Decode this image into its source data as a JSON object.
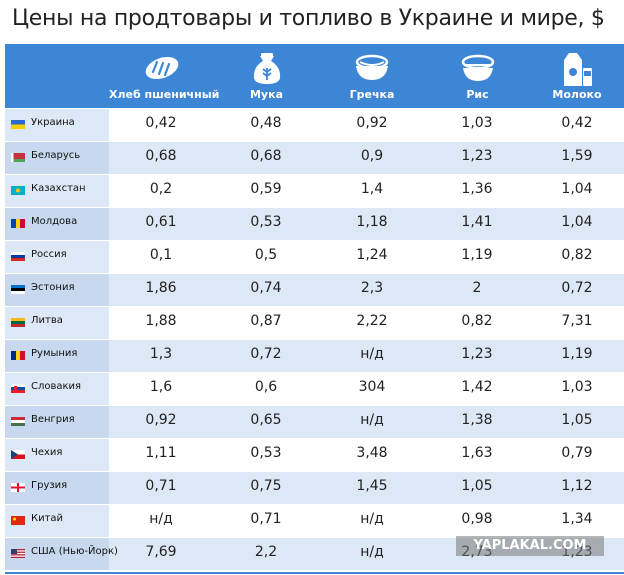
{
  "title": "Цены на продтовары и топливо в Украине и мире, $",
  "columns": [
    {
      "label": "Хлеб пшеничный",
      "icon": "bread-icon"
    },
    {
      "label": "Мука",
      "icon": "flour-sack-icon"
    },
    {
      "label": "Гречка",
      "icon": "buckwheat-bowl-icon"
    },
    {
      "label": "Рис",
      "icon": "rice-bowl-icon"
    },
    {
      "label": "Молоко",
      "icon": "milk-icon"
    }
  ],
  "rows": [
    {
      "country": "Украина",
      "flag": "ukraine-flag-icon",
      "values": [
        "0,42",
        "0,48",
        "0,92",
        "1,03",
        "0,42"
      ]
    },
    {
      "country": "Беларусь",
      "flag": "belarus-flag-icon",
      "values": [
        "0,68",
        "0,68",
        "0,9",
        "1,23",
        "1,59"
      ]
    },
    {
      "country": "Казахстан",
      "flag": "kazakhstan-flag-icon",
      "values": [
        "0,2",
        "0,59",
        "1,4",
        "1,36",
        "1,04"
      ]
    },
    {
      "country": "Молдова",
      "flag": "moldova-flag-icon",
      "values": [
        "0,61",
        "0,53",
        "1,18",
        "1,41",
        "1,04"
      ]
    },
    {
      "country": "Россия",
      "flag": "russia-flag-icon",
      "values": [
        "0,1",
        "0,5",
        "1,24",
        "1,19",
        "0,82"
      ]
    },
    {
      "country": "Эстония",
      "flag": "estonia-flag-icon",
      "values": [
        "1,86",
        "0,74",
        "2,3",
        "2",
        "0,72"
      ]
    },
    {
      "country": "Литва",
      "flag": "lithuania-flag-icon",
      "values": [
        "1,88",
        "0,87",
        "2,22",
        "0,82",
        "7,31"
      ]
    },
    {
      "country": "Румыния",
      "flag": "romania-flag-icon",
      "values": [
        "1,3",
        "0,72",
        "н/д",
        "1,23",
        "1,19"
      ]
    },
    {
      "country": "Словакия",
      "flag": "slovakia-flag-icon",
      "values": [
        "1,6",
        "0,6",
        "304",
        "1,42",
        "1,03"
      ]
    },
    {
      "country": "Венгрия",
      "flag": "hungary-flag-icon",
      "values": [
        "0,92",
        "0,65",
        "н/д",
        "1,38",
        "1,05"
      ]
    },
    {
      "country": "Чехия",
      "flag": "czech-flag-icon",
      "values": [
        "1,11",
        "0,53",
        "3,48",
        "1,63",
        "0,79"
      ]
    },
    {
      "country": "Грузия",
      "flag": "georgia-flag-icon",
      "values": [
        "0,71",
        "0,75",
        "1,45",
        "1,05",
        "1,12"
      ]
    },
    {
      "country": "Китай",
      "flag": "china-flag-icon",
      "values": [
        "н/д",
        "0,71",
        "н/д",
        "0,98",
        "1,34"
      ]
    },
    {
      "country": "США (Нью-Йорк)",
      "flag": "usa-flag-icon",
      "values": [
        "7,69",
        "2,2",
        "н/д",
        "2,73",
        "1,23"
      ]
    }
  ],
  "watermark": "YAPLAKAL.COM",
  "colors": {
    "header": "#3d86d6",
    "stripe": "#dde8f6",
    "first_col": "#c8d9ef"
  }
}
